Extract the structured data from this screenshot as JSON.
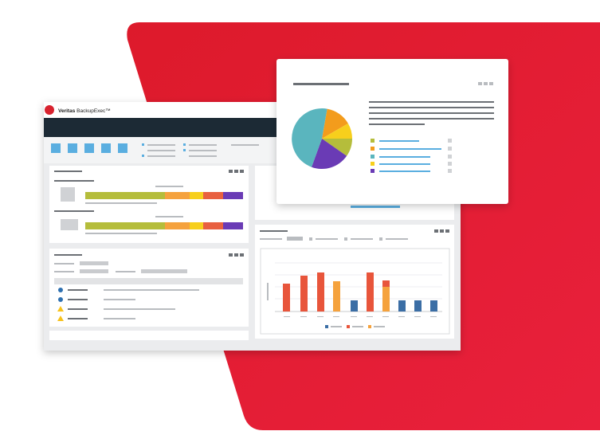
{
  "header": {
    "brand": "Veritas",
    "product": "BackupExec™"
  }
}
